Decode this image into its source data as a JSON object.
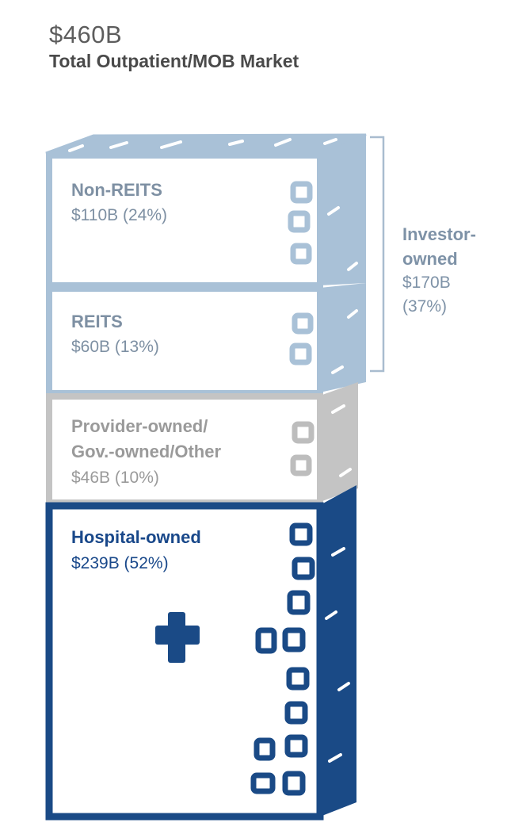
{
  "header": {
    "total_value": "$460B",
    "total_label": "Total Outpatient/MOB Market"
  },
  "segments": [
    {
      "name": "Non-REITS",
      "value": "$110B (24%)",
      "amount_billion": 110,
      "percent": 24,
      "color": "#a9c1d7"
    },
    {
      "name": "REITS",
      "value": "$60B (13%)",
      "amount_billion": 60,
      "percent": 13,
      "color": "#a9c1d7"
    },
    {
      "name": "Provider-owned/\nGov.-owned/Other",
      "value": "$46B (10%)",
      "amount_billion": 46,
      "percent": 10,
      "color": "#c4c4c4"
    },
    {
      "name": "Hospital-owned",
      "value": "$239B (52%)",
      "amount_billion": 239,
      "percent": 52,
      "color": "#1a4a86"
    }
  ],
  "investor_group": {
    "name": "Investor-\nowned",
    "value": "$170B\n(37%)",
    "color": "#8ea4ba"
  }
}
